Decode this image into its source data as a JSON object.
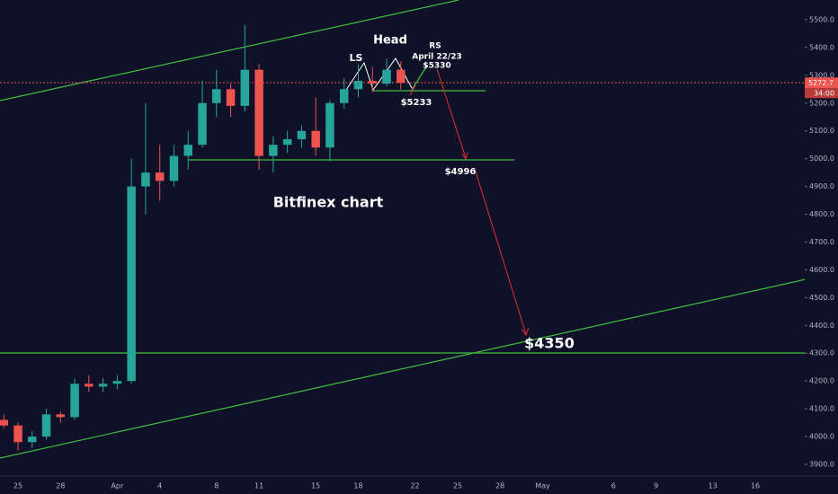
{
  "chart_data": {
    "type": "candlestick",
    "title": "Bitfinex chart",
    "categories": [
      null,
      "25",
      null,
      null,
      "28",
      null,
      null,
      null,
      "Apr",
      null,
      null,
      "4",
      null,
      null,
      null,
      "8",
      null,
      null,
      "11",
      null,
      null,
      null,
      "15",
      null,
      null,
      "18",
      null,
      null,
      null,
      "22",
      null,
      null,
      "25",
      null,
      null,
      "28",
      null,
      null,
      "May",
      null,
      null,
      null,
      null,
      "6",
      null,
      null,
      "9",
      null,
      null,
      null,
      "13",
      null,
      null,
      "16",
      null,
      null,
      null
    ],
    "series": [
      {
        "up_color": "#26a69a",
        "down_color": "#ef5350",
        "open": [
          4060,
          4040,
          3980,
          4000,
          4080,
          4070,
          4190,
          4180,
          4190,
          4200,
          4900,
          4950,
          4920,
          5010,
          5050,
          5200,
          5250,
          5190,
          5320,
          5010,
          5050,
          5070,
          5100,
          5040,
          5200,
          5250,
          5280,
          5270,
          5320,
          null,
          null,
          null,
          null,
          null,
          null,
          null,
          null,
          null,
          null,
          null,
          null,
          null,
          null,
          null,
          null,
          null,
          null,
          null,
          null,
          null,
          null,
          null,
          null,
          null,
          null,
          null,
          null
        ],
        "high": [
          4080,
          4050,
          4020,
          4100,
          4090,
          4210,
          4220,
          4210,
          4220,
          5000,
          5200,
          5050,
          5050,
          5100,
          5280,
          5320,
          5270,
          5480,
          5340,
          5080,
          5100,
          5120,
          5220,
          5210,
          5290,
          5340,
          5330,
          5360,
          5350,
          null,
          null,
          null,
          null,
          null,
          null,
          null,
          null,
          null,
          null,
          null,
          null,
          null,
          null,
          null,
          null,
          null,
          null,
          null,
          null,
          null,
          null,
          null,
          null,
          null,
          null,
          null,
          null
        ],
        "low": [
          4030,
          3950,
          3960,
          3990,
          4050,
          4060,
          4160,
          4160,
          4170,
          4190,
          4800,
          4850,
          4900,
          4960,
          5040,
          5150,
          5150,
          5170,
          4960,
          4950,
          5020,
          5040,
          5010,
          4990,
          5180,
          5220,
          5240,
          5260,
          5250,
          null,
          null,
          null,
          null,
          null,
          null,
          null,
          null,
          null,
          null,
          null,
          null,
          null,
          null,
          null,
          null,
          null,
          null,
          null,
          null,
          null,
          null,
          null,
          null,
          null,
          null,
          null,
          null
        ],
        "close": [
          4040,
          3980,
          4000,
          4080,
          4070,
          4190,
          4180,
          4190,
          4200,
          4900,
          4950,
          4920,
          5010,
          5050,
          5200,
          5250,
          5190,
          5320,
          5010,
          5050,
          5070,
          5100,
          5040,
          5200,
          5250,
          5280,
          5270,
          5320,
          5272.7,
          null,
          null,
          null,
          null,
          null,
          null,
          null,
          null,
          null,
          null,
          null,
          null,
          null,
          null,
          null,
          null,
          null,
          null,
          null,
          null,
          null,
          null,
          null,
          null,
          null,
          null,
          null,
          null
        ]
      }
    ],
    "ylim": [
      3858,
      5571
    ],
    "yticks": [
      {
        "value": 3900,
        "label": "3900.0"
      },
      {
        "value": 4000,
        "label": "4000.0"
      },
      {
        "value": 4100,
        "label": "4100.0"
      },
      {
        "value": 4200,
        "label": "4200.0"
      },
      {
        "value": 4300,
        "label": "4300.0"
      },
      {
        "value": 4400,
        "label": "4400.0"
      },
      {
        "value": 4500,
        "label": "4500.0"
      },
      {
        "value": 4600,
        "label": "4600.0"
      },
      {
        "value": 4700,
        "label": "4700.0"
      },
      {
        "value": 4800,
        "label": "4800.0"
      },
      {
        "value": 4900,
        "label": "4900.0"
      },
      {
        "value": 5000,
        "label": "5000.0"
      },
      {
        "value": 5100,
        "label": "5100.0"
      },
      {
        "value": 5200,
        "label": "5200.0"
      },
      {
        "value": 5300,
        "label": "5300.0"
      },
      {
        "value": 5400,
        "label": "5400.0"
      },
      {
        "value": 5500,
        "label": "5500.0"
      }
    ],
    "annotations": [
      "Head",
      "LS",
      "RS",
      "April 22/23",
      "$5330",
      "$5233",
      "$4996",
      "$4350"
    ],
    "countdown": "34:00"
  }
}
